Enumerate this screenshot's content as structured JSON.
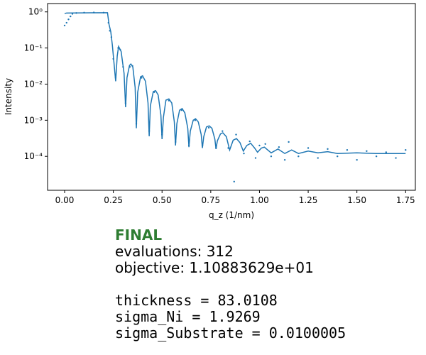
{
  "chart_data": {
    "type": "line",
    "ylabel": "Intensity",
    "xlabel": "q_z (1/nm)",
    "yscale": "log",
    "xlim": [
      -0.0875,
      1.8
    ],
    "ylim": [
      1.15e-05,
      1.7
    ],
    "xticks": [
      {
        "value": 0,
        "label": "0.00"
      },
      {
        "value": 0.25,
        "label": "0.25"
      },
      {
        "value": 0.5,
        "label": "0.50"
      },
      {
        "value": 0.75,
        "label": "0.75"
      },
      {
        "value": 1,
        "label": "1.00"
      },
      {
        "value": 1.25,
        "label": "1.25"
      },
      {
        "value": 1.5,
        "label": "1.50"
      },
      {
        "value": 1.75,
        "label": "1.75"
      }
    ],
    "yticks": [
      {
        "value": 0.0001,
        "label": "10⁻⁴"
      },
      {
        "value": 0.001,
        "label": "10⁻³"
      },
      {
        "value": 0.01,
        "label": "10⁻²"
      },
      {
        "value": 0.1,
        "label": "10⁻¹"
      },
      {
        "value": 1,
        "label": "10⁰"
      }
    ],
    "series": [
      {
        "type": "line",
        "color": "#1f77b4",
        "x": [
          0.0,
          0.01,
          0.22,
          0.228,
          0.237,
          0.245,
          0.262,
          0.27,
          0.277,
          0.29,
          0.305,
          0.313,
          0.32,
          0.333,
          0.34,
          0.35,
          0.362,
          0.368,
          0.375,
          0.39,
          0.4,
          0.415,
          0.428,
          0.434,
          0.44,
          0.455,
          0.467,
          0.48,
          0.494,
          0.5,
          0.507,
          0.52,
          0.535,
          0.55,
          0.563,
          0.569,
          0.576,
          0.59,
          0.603,
          0.617,
          0.632,
          0.638,
          0.645,
          0.66,
          0.672,
          0.686,
          0.701,
          0.707,
          0.714,
          0.728,
          0.742,
          0.756,
          0.771,
          0.777,
          0.784,
          0.8,
          0.812,
          0.83,
          0.847,
          0.865,
          0.882,
          0.9,
          0.917,
          0.935,
          0.955,
          0.975,
          0.99,
          1.01,
          1.025,
          1.06,
          1.095,
          1.13,
          1.165,
          1.2,
          1.25,
          1.3,
          1.35,
          1.4,
          1.5,
          1.6,
          1.75
        ],
        "values": [
          0.9,
          0.93,
          0.95,
          0.45,
          0.28,
          0.12,
          0.012,
          0.06,
          0.11,
          0.08,
          0.02,
          0.0023,
          0.015,
          0.033,
          0.036,
          0.03,
          0.008,
          0.0006,
          0.006,
          0.016,
          0.017,
          0.012,
          0.003,
          0.00036,
          0.0025,
          0.0062,
          0.0066,
          0.005,
          0.0014,
          0.0003,
          0.0012,
          0.0036,
          0.0039,
          0.003,
          0.0009,
          0.0002,
          0.0008,
          0.0019,
          0.0021,
          0.0016,
          0.0006,
          0.00018,
          0.0005,
          0.001,
          0.0011,
          0.0009,
          0.0004,
          0.00017,
          0.00035,
          0.00065,
          0.0007,
          0.0006,
          0.0003,
          0.00016,
          0.00027,
          0.00042,
          0.00045,
          0.00035,
          0.00015,
          0.00028,
          0.00031,
          0.00024,
          0.00014,
          0.0002,
          0.00023,
          0.00017,
          0.00013,
          0.00017,
          0.00018,
          0.000125,
          0.00016,
          0.00012,
          0.00015,
          0.00012,
          0.00014,
          0.000125,
          0.000135,
          0.00012,
          0.000125,
          0.00012,
          0.00012
        ]
      },
      {
        "type": "scatter",
        "color": "#1f77b4",
        "x": [
          0.0,
          0.01,
          0.02,
          0.03,
          0.04,
          0.06,
          0.1,
          0.15,
          0.2,
          0.225,
          0.232,
          0.24,
          0.25,
          0.262,
          0.275,
          0.285,
          0.3,
          0.313,
          0.335,
          0.348,
          0.368,
          0.395,
          0.434,
          0.46,
          0.5,
          0.535,
          0.569,
          0.6,
          0.638,
          0.67,
          0.707,
          0.74,
          0.777,
          0.81,
          0.84,
          0.87,
          0.88,
          0.92,
          0.95,
          0.98,
          1.0,
          1.03,
          1.06,
          1.1,
          1.13,
          1.15,
          1.2,
          1.25,
          1.3,
          1.35,
          1.4,
          1.45,
          1.5,
          1.55,
          1.6,
          1.65,
          1.7,
          1.75
        ],
        "values": [
          0.42,
          0.5,
          0.62,
          0.75,
          0.88,
          0.93,
          0.95,
          0.96,
          0.95,
          0.5,
          0.3,
          0.2,
          0.05,
          0.015,
          0.1,
          0.09,
          0.03,
          0.003,
          0.03,
          0.032,
          0.0008,
          0.015,
          0.0005,
          0.006,
          0.0004,
          0.0035,
          0.00025,
          0.0019,
          0.0002,
          0.001,
          0.0002,
          0.00062,
          0.00017,
          0.0005,
          0.00017,
          2e-05,
          0.0004,
          0.00012,
          0.00026,
          9e-05,
          0.0002,
          0.00022,
          0.0001,
          0.00018,
          8e-05,
          0.00025,
          0.0001,
          0.00017,
          9e-05,
          0.00016,
          0.0001,
          0.00015,
          8e-05,
          0.00014,
          0.0001,
          0.00013,
          9e-05,
          0.00015
        ]
      }
    ]
  },
  "report": {
    "status": "FINAL",
    "lines": [
      "evaluations: 312",
      "objective: 1.10883629e+01"
    ],
    "parameters": [
      "thickness = 83.0108",
      "sigma_Ni = 1.9269",
      "sigma_Substrate = 0.0100005"
    ]
  }
}
